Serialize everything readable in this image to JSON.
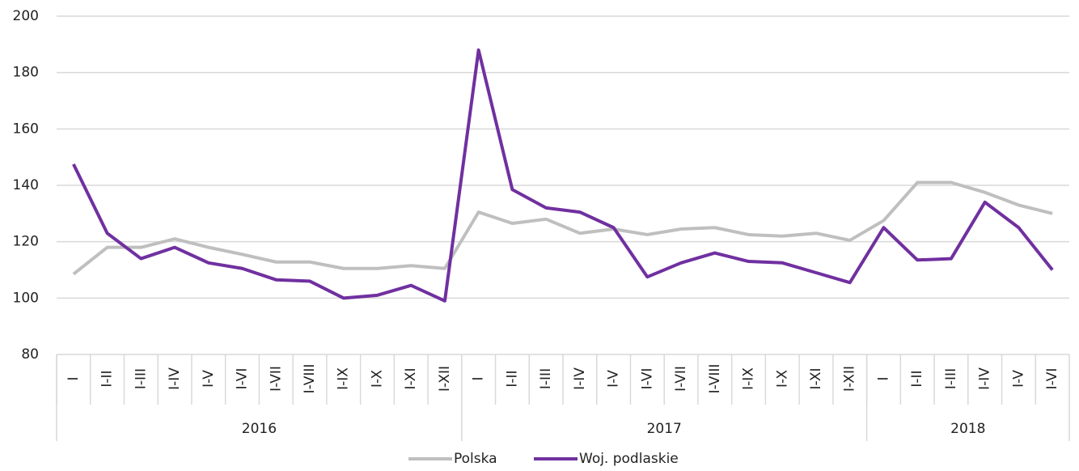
{
  "chart_data": {
    "type": "line",
    "groups": [
      {
        "label": "2016",
        "categories": [
          "I",
          "I-II",
          "I-III",
          "I-IV",
          "I-V",
          "I-VI",
          "I-VII",
          "I-VIII",
          "I-IX",
          "I-X",
          "I-XI",
          "I-XII"
        ]
      },
      {
        "label": "2017",
        "categories": [
          "I",
          "I-II",
          "I-III",
          "I-IV",
          "I-V",
          "I-VI",
          "I-VII",
          "I-VIII",
          "I-IX",
          "I-X",
          "I-XI",
          "I-XII"
        ]
      },
      {
        "label": "2018",
        "categories": [
          "I",
          "I-II",
          "I-III",
          "I-IV",
          "I-V",
          "I-VI"
        ]
      }
    ],
    "series": [
      {
        "name": "Polska",
        "color": "#bfbfbf",
        "values": [
          108.5,
          118,
          118,
          121,
          118,
          115.5,
          112.8,
          112.8,
          110.5,
          110.5,
          111.5,
          110.5,
          130.5,
          126.5,
          128,
          123,
          124.5,
          122.5,
          124.5,
          125,
          122.5,
          122,
          123,
          120.5,
          127.5,
          141,
          141,
          137.5,
          133,
          130
        ]
      },
      {
        "name": "Woj. podlaskie",
        "color": "#7030a0",
        "values": [
          147.5,
          123,
          114,
          118,
          112.5,
          110.5,
          106.5,
          106,
          100,
          101,
          104.5,
          99,
          188,
          138.5,
          132,
          130.5,
          125,
          107.5,
          112.5,
          116,
          113,
          112.5,
          109,
          105.5,
          125,
          113.5,
          114,
          134,
          125,
          110
        ]
      }
    ],
    "ylim": [
      80,
      200
    ],
    "yticks": [
      80,
      100,
      120,
      140,
      160,
      180,
      200
    ],
    "grid": true,
    "legend": "bottom"
  }
}
